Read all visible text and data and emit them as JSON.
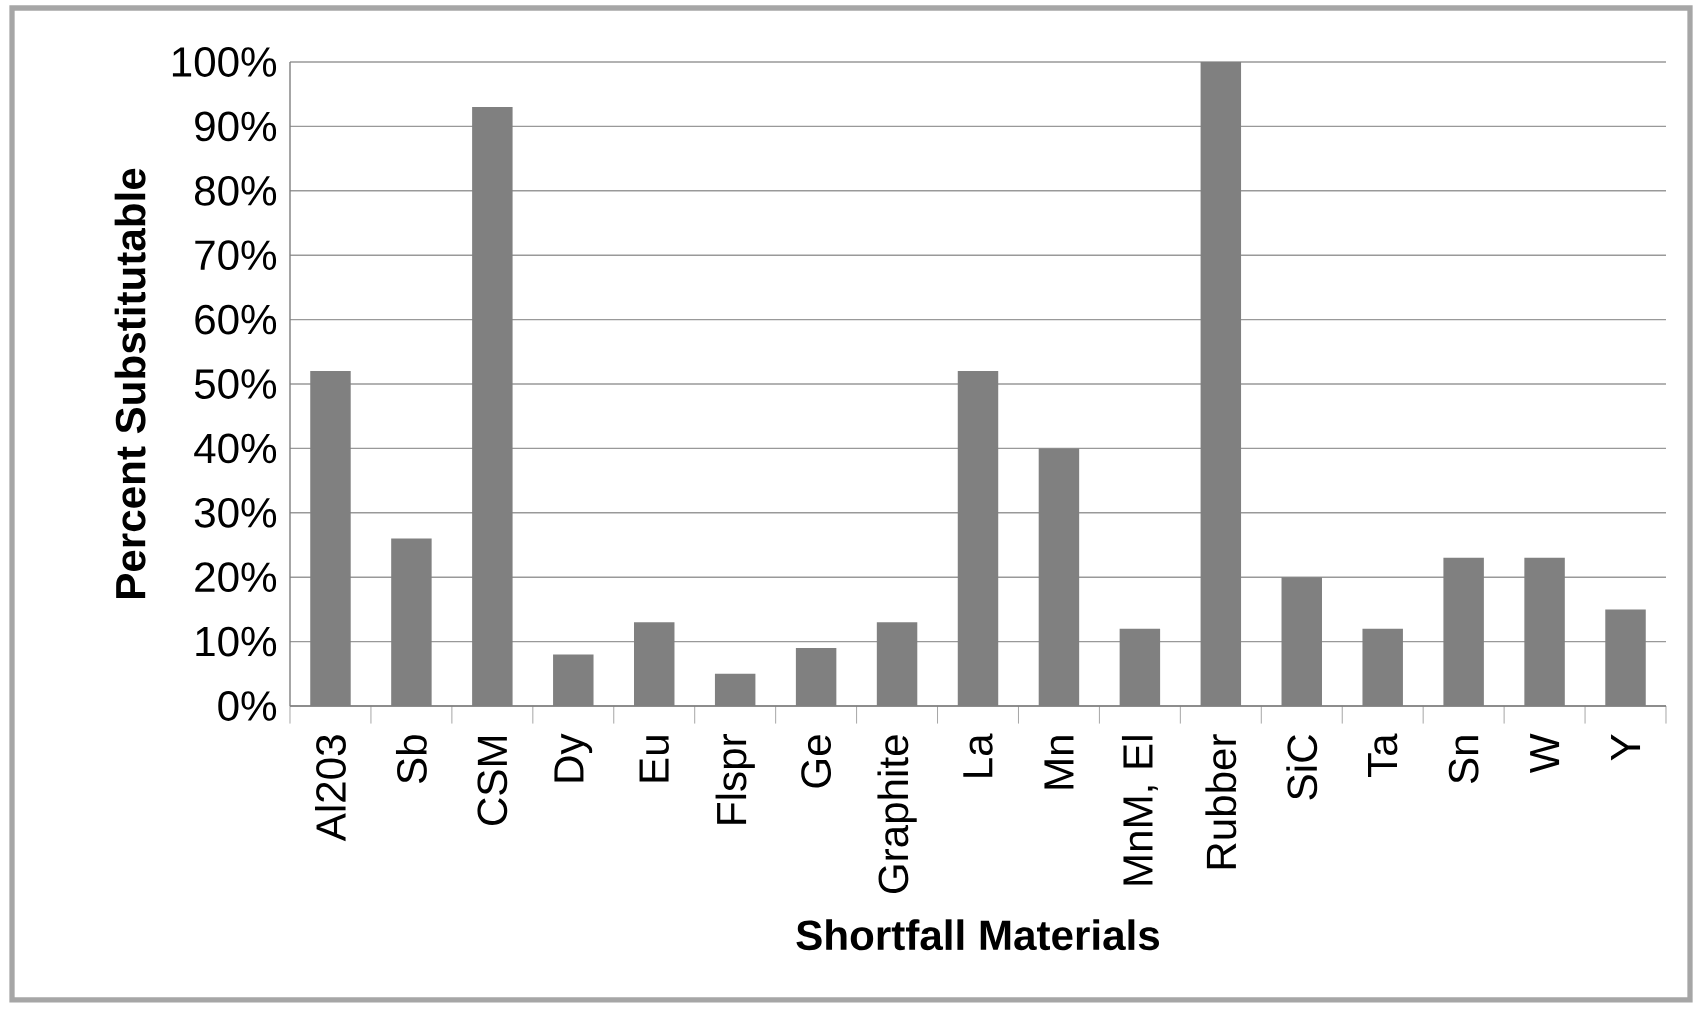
{
  "chart_data": {
    "type": "bar",
    "xlabel": "Shortfall Materials",
    "ylabel": "Percent Substitutable",
    "categories": [
      "Al203",
      "Sb",
      "CSM",
      "Dy",
      "Eu",
      "Flspr",
      "Ge",
      "Graphite",
      "La",
      "Mn",
      "MnM, El",
      "Rubber",
      "SiC",
      "Ta",
      "Sn",
      "W",
      "Y"
    ],
    "values": [
      52,
      26,
      93,
      8,
      13,
      5,
      9,
      13,
      52,
      40,
      12,
      100,
      20,
      12,
      23,
      23,
      15
    ],
    "color": "#808080",
    "ylim": [
      0,
      100
    ],
    "yticks": [
      {
        "value": 0,
        "label": "0%"
      },
      {
        "value": 10,
        "label": "10%"
      },
      {
        "value": 20,
        "label": "20%"
      },
      {
        "value": 30,
        "label": "30%"
      },
      {
        "value": 40,
        "label": "40%"
      },
      {
        "value": 50,
        "label": "50%"
      },
      {
        "value": 60,
        "label": "60%"
      },
      {
        "value": 70,
        "label": "70%"
      },
      {
        "value": 80,
        "label": "80%"
      },
      {
        "value": 90,
        "label": "90%"
      },
      {
        "value": 100,
        "label": "100%"
      }
    ],
    "grid": "y"
  }
}
